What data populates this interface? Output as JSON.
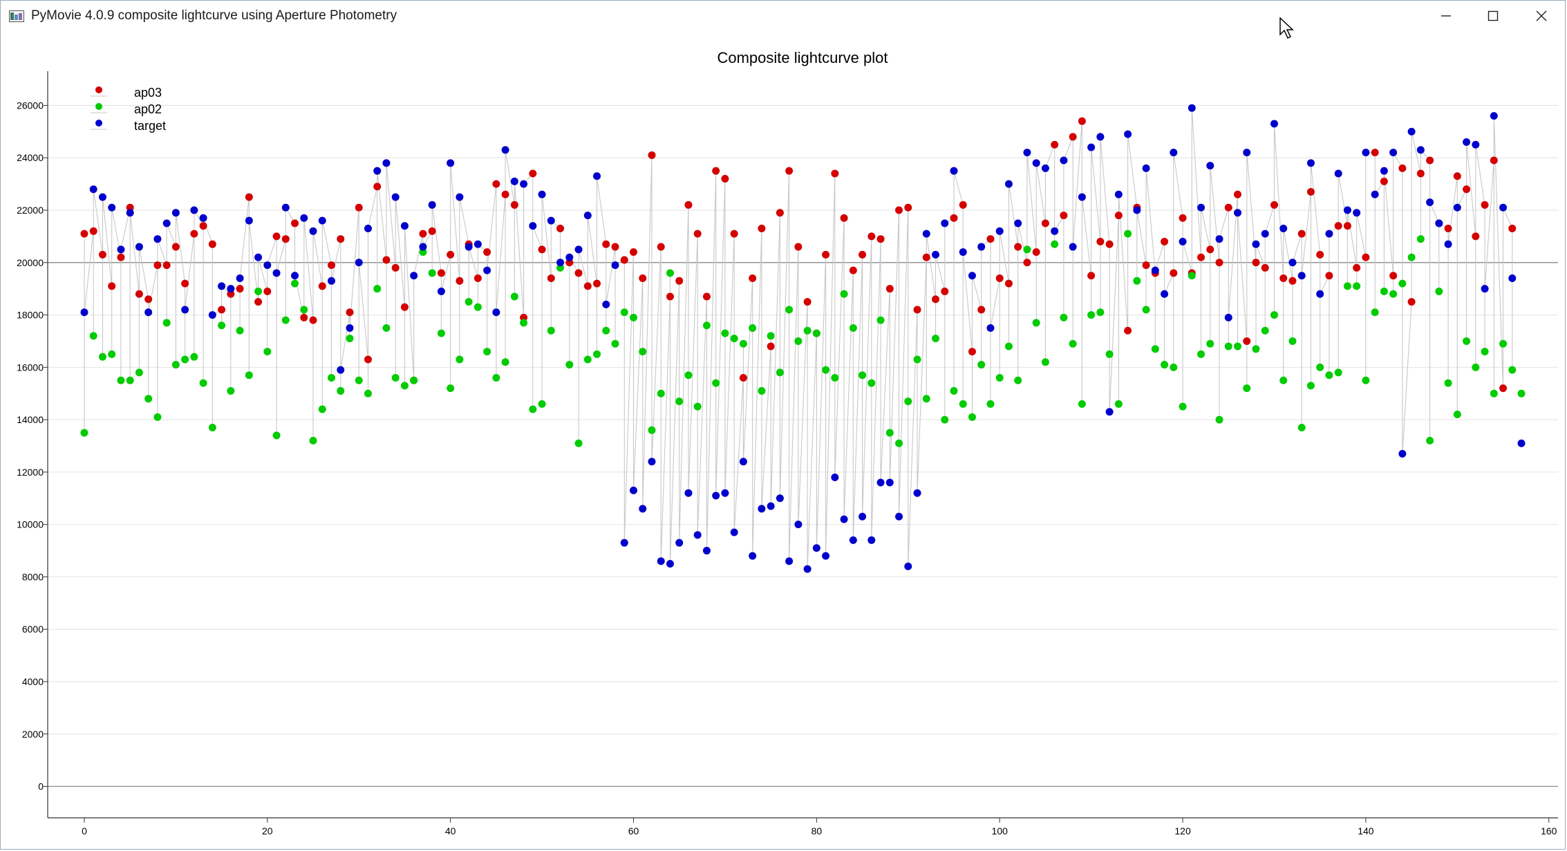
{
  "window": {
    "title": "PyMovie 4.0.9 composite lightcurve using Aperture Photometry"
  },
  "controls": {
    "minimize": "minimize-icon",
    "maximize": "maximize-icon",
    "close": "close-icon"
  },
  "chart_data": {
    "type": "scatter",
    "title": "Composite lightcurve plot",
    "xlabel": "",
    "ylabel": "",
    "xlim": [
      -4,
      161
    ],
    "ylim": [
      -1200,
      27200
    ],
    "xticks": [
      0,
      20,
      40,
      60,
      80,
      100,
      120,
      140,
      160
    ],
    "yticks": [
      0,
      2000,
      4000,
      6000,
      8000,
      10000,
      12000,
      14000,
      16000,
      18000,
      20000,
      22000,
      24000,
      26000
    ],
    "grid": true,
    "reference_line_y": 20000,
    "legend_position": "top-left",
    "series": [
      {
        "name": "ap03",
        "color": "#d40000",
        "values": [
          21100,
          21200,
          20300,
          19100,
          20200,
          22100,
          18800,
          18600,
          19900,
          19900,
          20600,
          19200,
          21100,
          21400,
          20700,
          18200,
          18800,
          19000,
          22500,
          18500,
          18900,
          21000,
          20900,
          21500,
          17900,
          17800,
          19100,
          19900,
          20900,
          18100,
          22100,
          16300,
          22900,
          20100,
          19800,
          18300,
          15500,
          21100,
          21200,
          19600,
          20300,
          19300,
          20700,
          19400,
          20400,
          23000,
          22600,
          22200,
          17900,
          23400,
          20500,
          19400,
          21300,
          20000,
          19600,
          19100,
          19200,
          20700,
          20600,
          20100,
          20400,
          19400,
          24100,
          20600,
          18700,
          19300,
          22200,
          21100,
          18700,
          23500,
          23200,
          21100,
          15600,
          19400,
          21300,
          16800,
          21900,
          23500,
          20600,
          18500,
          17300,
          20300,
          23400,
          21700,
          19700,
          20300,
          21000,
          20900,
          19000,
          22000,
          22100,
          18200,
          20200,
          18600,
          18900,
          21700,
          22200,
          16600,
          18200,
          20900,
          19400,
          19200,
          20600,
          20000,
          20400,
          21500,
          24500,
          21800,
          24800,
          25400,
          19500,
          20800,
          20700,
          21800,
          17400,
          22100,
          19900,
          19600,
          20800,
          19600,
          21700,
          19600,
          20200,
          20500,
          20000,
          22100,
          22600,
          17000,
          20000,
          19800,
          22200,
          19400,
          19300,
          21100,
          22700,
          20300,
          19500,
          21400,
          21400,
          19800,
          20200,
          24200,
          23100,
          19500,
          23600,
          18500,
          23400,
          23900,
          21500,
          21300,
          23300,
          22800,
          21000,
          22200,
          23900,
          15200,
          21300
        ]
      },
      {
        "name": "ap02",
        "color": "#00cc00",
        "values": [
          13500,
          17200,
          16400,
          16500,
          15500,
          15500,
          15800,
          14800,
          14100,
          17700,
          16100,
          16300,
          16400,
          15400,
          13700,
          17600,
          15100,
          17400,
          15700,
          18900,
          16600,
          13400,
          17800,
          19200,
          18200,
          13200,
          14400,
          15600,
          15100,
          17100,
          15500,
          15000,
          19000,
          17500,
          15600,
          15300,
          15500,
          20400,
          19600,
          17300,
          15200,
          16300,
          18500,
          18300,
          16600,
          15600,
          16200,
          18700,
          17700,
          14400,
          14600,
          17400,
          19800,
          16100,
          13100,
          16300,
          16500,
          17400,
          16900,
          18100,
          17900,
          16600,
          13600,
          15000,
          19600,
          14700,
          15700,
          14500,
          17600,
          15400,
          17300,
          17100,
          16900,
          17500,
          15100,
          17200,
          15800,
          18200,
          17000,
          17400,
          17300,
          15900,
          15600,
          18800,
          17500,
          15700,
          15400,
          17800,
          13500,
          13100,
          14700,
          16300,
          14800,
          17100,
          14000,
          15100,
          14600,
          14100,
          16100,
          14600,
          15600,
          16800,
          15500,
          20500,
          17700,
          16200,
          20700,
          17900,
          16900,
          14600,
          18000,
          18100,
          16500,
          14600,
          21100,
          19300,
          18200,
          16700,
          16100,
          16000,
          14500,
          19500,
          16500,
          16900,
          14000,
          16800,
          16800,
          15200,
          16700,
          17400,
          18000,
          15500,
          17000,
          13700,
          15300,
          16000,
          15700,
          15800,
          19100,
          19100,
          15500,
          18100,
          18900,
          18800,
          19200,
          20200,
          20900,
          13200,
          18900,
          15400,
          14200,
          17000,
          16000,
          16600,
          15000,
          16900,
          15900,
          15000
        ]
      },
      {
        "name": "target",
        "color": "#0000cc",
        "values": [
          18100,
          22800,
          22500,
          22100,
          20500,
          21900,
          20600,
          18100,
          20900,
          21500,
          21900,
          18200,
          22000,
          21700,
          18000,
          19100,
          19000,
          19400,
          21600,
          20200,
          19900,
          19600,
          22100,
          19500,
          21700,
          21200,
          21600,
          19300,
          15900,
          17500,
          20000,
          21300,
          23500,
          23800,
          22500,
          21400,
          19500,
          20600,
          22200,
          18900,
          23800,
          22500,
          20600,
          20700,
          19700,
          18100,
          24300,
          23100,
          23000,
          21400,
          22600,
          21600,
          20000,
          20200,
          20500,
          21800,
          23300,
          18400,
          19900,
          9300,
          11300,
          10600,
          12400,
          8600,
          8500,
          9300,
          11200,
          9600,
          9000,
          11100,
          11200,
          9700,
          12400,
          8800,
          10600,
          10700,
          11000,
          8600,
          10000,
          8300,
          9100,
          8800,
          11800,
          10200,
          9400,
          10300,
          9400,
          11600,
          11600,
          10300,
          8400,
          11200,
          21100,
          20300,
          21500,
          23500,
          20400,
          19500,
          20600,
          17500,
          21200,
          23000,
          21500,
          24200,
          23800,
          23600,
          21200,
          23900,
          20600,
          22500,
          24400,
          24800,
          14300,
          22600,
          24900,
          22000,
          23600,
          19700,
          18800,
          24200,
          20800,
          25900,
          22100,
          23700,
          20900,
          17900,
          21900,
          24200,
          20700,
          21100,
          25300,
          21300,
          20000,
          19500,
          23800,
          18800,
          21100,
          23400,
          22000,
          21900,
          24200,
          22600,
          23500,
          24200,
          12700,
          25000,
          24300,
          22300,
          21500,
          20700,
          22100,
          24600,
          24500,
          19000,
          25600,
          22100,
          19400,
          13100
        ]
      }
    ]
  }
}
